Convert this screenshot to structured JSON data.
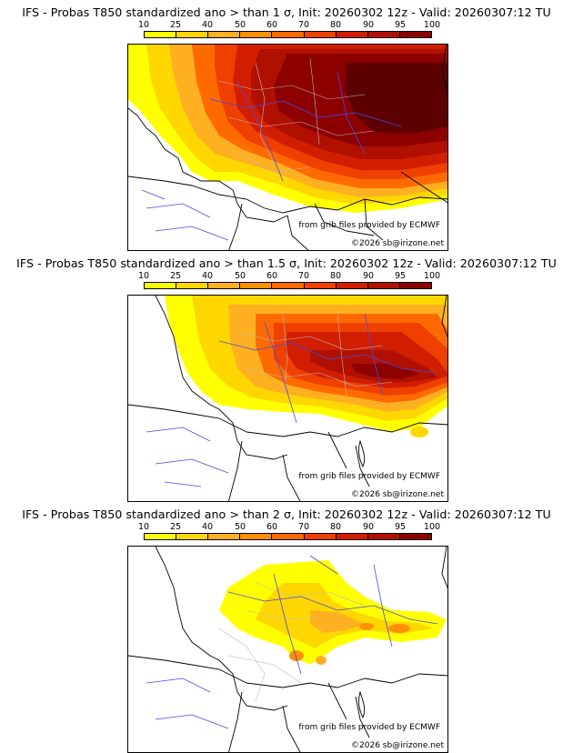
{
  "legend": {
    "ticks": [
      "10",
      "25",
      "40",
      "50",
      "60",
      "70",
      "80",
      "90",
      "95",
      "100"
    ],
    "colors": [
      "#ffff00",
      "#ffd700",
      "#ffb020",
      "#ff9000",
      "#ff6a00",
      "#f04000",
      "#d21e00",
      "#b01000",
      "#8c0000",
      "#5c0000"
    ]
  },
  "panels": [
    {
      "title": "IFS - Probas T850  standardized ano > than 1 σ, Init: 20260302 12z - Valid: 20260307:12 TU"
    },
    {
      "title": "IFS - Probas T850  standardized ano > than 1.5 σ, Init: 20260302 12z - Valid: 20260307:12 TU"
    },
    {
      "title": "IFS - Probas T850  standardized ano > than 2 σ, Init: 20260302 12z - Valid: 20260307:12 TU"
    }
  ],
  "credits": {
    "source": "from grib files provided by ECMWF",
    "copyright": "©2026 sb@irizone.net"
  }
}
